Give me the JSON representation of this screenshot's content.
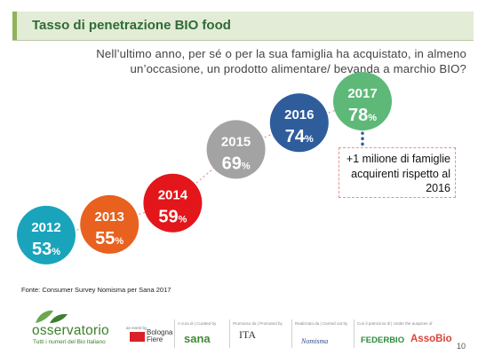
{
  "header": {
    "title": "Tasso di penetrazione BIO food"
  },
  "question": "Nell’ultimo anno, per sé o per la sua famiglia ha acquistato, in almeno un’occasione, un prodotto alimentare/ bevanda a marchio BIO?",
  "chart_data": {
    "type": "bubble-timeline",
    "categories": [
      "2012",
      "2013",
      "2014",
      "2015",
      "2016",
      "2017"
    ],
    "values": [
      53,
      55,
      59,
      69,
      74,
      78
    ],
    "unit": "%",
    "colors": [
      "#1aa4bc",
      "#e8611e",
      "#e2161b",
      "#a3a3a3",
      "#2f5d9c",
      "#5eb979"
    ]
  },
  "callout": {
    "text": "+1 milione di famiglie acquirenti rispetto al 2016"
  },
  "source": "Fonte: Consumer Survey Nomisma per Sana 2017",
  "footer": {
    "brand": "osservatorio",
    "tagline": "Tutti i numeri del Bio Italiano",
    "event_caption": "an event by",
    "event_name_1": "Bologna",
    "event_name_2": "Fiere",
    "created_caption": "A cura di | Curated by",
    "sana": "sana",
    "promoted_caption": "Promosso da | Promoted by",
    "ita": "ITA",
    "realized_caption": "Realizzato da | Carried out by",
    "nomisma": "Nomisma",
    "patronage_caption": "Con il patrocinio di | Under the auspices of",
    "federbio": "FEDERBIO",
    "assobio": "AssoBio",
    "page_number": "10"
  }
}
